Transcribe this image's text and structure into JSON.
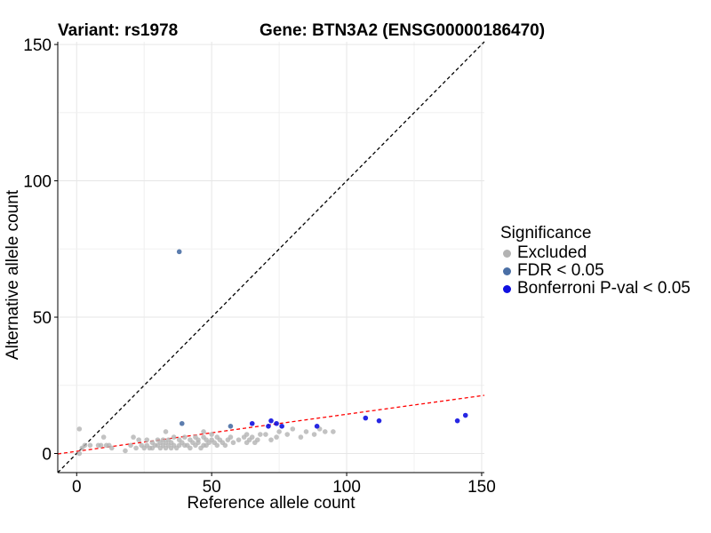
{
  "chart_data": {
    "type": "scatter",
    "title_left": "Variant: rs1978",
    "title_right": "Gene: BTN3A2 (ENSG00000186470)",
    "xlabel": "Reference allele count",
    "ylabel": "Alternative allele count",
    "xlim": [
      -7,
      151
    ],
    "ylim": [
      -7,
      151
    ],
    "xticks": [
      0,
      50,
      100,
      150
    ],
    "yticks": [
      0,
      50,
      100,
      150
    ],
    "grid": true,
    "legend": {
      "title": "Significance",
      "position": "right",
      "entries": [
        {
          "label": "Excluded",
          "color": "#b3b3b3"
        },
        {
          "label": "FDR < 0.05",
          "color": "#4a6fa5"
        },
        {
          "label": "Bonferroni P-val < 0.05",
          "color": "#1010e0"
        }
      ]
    },
    "reference_lines": [
      {
        "name": "identity",
        "style": "dashed",
        "color": "#000000",
        "intercept": 0,
        "slope": 1
      },
      {
        "name": "regression",
        "style": "dashed",
        "color": "#ff0000",
        "intercept": 0.8,
        "slope": 0.136
      }
    ],
    "series": [
      {
        "name": "Excluded",
        "color": "#b3b3b3",
        "x": [
          1,
          2,
          3,
          5,
          8,
          9,
          11,
          12,
          13,
          10,
          18,
          20,
          21,
          22,
          23,
          24,
          25,
          26,
          26,
          27,
          28,
          28,
          29,
          30,
          30,
          31,
          31,
          32,
          32,
          33,
          33,
          34,
          34,
          35,
          35,
          36,
          36,
          37,
          38,
          38,
          39,
          40,
          40,
          41,
          42,
          42,
          43,
          44,
          44,
          45,
          45,
          46,
          47,
          47,
          48,
          48,
          49,
          50,
          50,
          51,
          52,
          52,
          53,
          54,
          55,
          56,
          57,
          58,
          60,
          62,
          63,
          63,
          64,
          65,
          66,
          67,
          68,
          70,
          72,
          74,
          75,
          78,
          80,
          83,
          85,
          88,
          90,
          92,
          95,
          1,
          33,
          47
        ],
        "y": [
          9,
          2,
          3,
          3,
          3,
          3,
          3,
          3,
          2,
          6,
          1,
          3,
          6,
          2,
          5,
          3,
          2,
          3,
          5,
          2,
          4,
          2,
          3,
          3,
          5,
          2,
          4,
          3,
          5,
          2,
          4,
          3,
          5,
          2,
          4,
          3,
          6,
          2,
          3,
          5,
          4,
          3,
          6,
          3,
          2,
          5,
          4,
          3,
          6,
          4,
          5,
          2,
          3,
          6,
          5,
          3,
          4,
          5,
          7,
          4,
          3,
          6,
          5,
          4,
          3,
          5,
          6,
          4,
          5,
          6,
          4,
          7,
          5,
          6,
          4,
          5,
          7,
          7,
          5,
          6,
          8,
          7,
          9,
          6,
          8,
          7,
          9,
          8,
          8,
          0,
          8,
          8
        ]
      },
      {
        "name": "FDR < 0.05",
        "color": "#4a6fa5",
        "x": [
          38,
          39,
          57
        ],
        "y": [
          74,
          11,
          10
        ]
      },
      {
        "name": "Bonferroni P-val < 0.05",
        "color": "#1010e0",
        "x": [
          65,
          71,
          72,
          74,
          76,
          89,
          107,
          112,
          141,
          144
        ],
        "y": [
          11,
          10,
          12,
          11,
          10,
          10,
          13,
          12,
          12,
          14
        ]
      }
    ]
  }
}
